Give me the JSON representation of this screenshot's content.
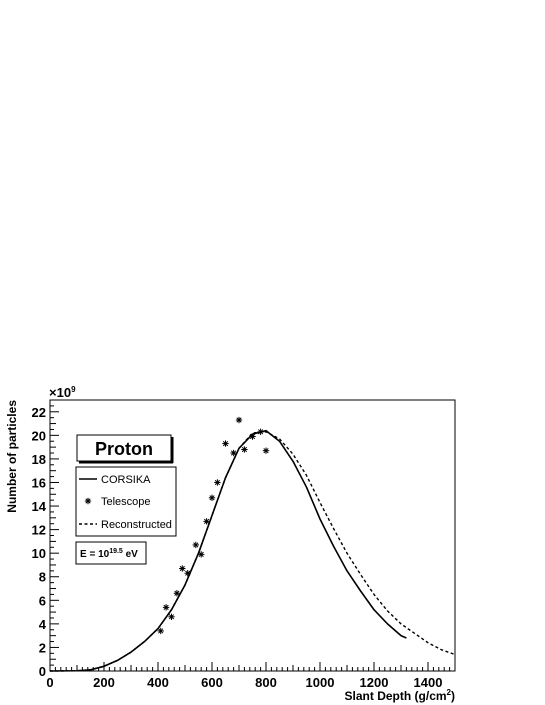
{
  "chart_data": {
    "type": "line",
    "xlabel": "Slant Depth (g/cm",
    "xlabel_sup": "2",
    "xlabel_end": ")",
    "ylabel": "Number of particles",
    "y_multiplier": "×10",
    "y_multiplier_exp": "9",
    "xlim": [
      0,
      1500
    ],
    "ylim": [
      0,
      23
    ],
    "x_ticks": [
      0,
      200,
      400,
      600,
      800,
      1000,
      1200,
      1400
    ],
    "y_ticks": [
      0,
      2,
      4,
      6,
      8,
      10,
      12,
      14,
      16,
      18,
      20,
      22
    ],
    "grid": false,
    "legend_placement": "left",
    "annotation_title": "Proton",
    "energy_label": {
      "prefix": "E = 10",
      "exp": "19.5",
      "suffix": " eV"
    },
    "series": [
      {
        "name": "CORSIKA",
        "style": "solid",
        "x": [
          0,
          100,
          150,
          200,
          250,
          300,
          350,
          400,
          450,
          500,
          550,
          600,
          650,
          700,
          750,
          800,
          850,
          900,
          950,
          1000,
          1050,
          1100,
          1150,
          1200,
          1250,
          1300,
          1320
        ],
        "y": [
          0.0,
          0.02,
          0.1,
          0.4,
          0.9,
          1.6,
          2.5,
          3.6,
          5.2,
          7.3,
          10.0,
          13.2,
          16.4,
          18.9,
          20.1,
          20.4,
          19.5,
          17.8,
          15.6,
          12.9,
          10.6,
          8.5,
          6.8,
          5.2,
          4.0,
          3.0,
          2.8
        ]
      },
      {
        "name": "Telescope",
        "style": "markers",
        "x": [
          410,
          430,
          450,
          470,
          490,
          510,
          540,
          560,
          580,
          600,
          620,
          650,
          680,
          700,
          720,
          750,
          780,
          800
        ],
        "y": [
          3.4,
          5.4,
          4.6,
          6.6,
          8.7,
          8.3,
          10.7,
          9.9,
          12.7,
          14.7,
          16.0,
          19.3,
          18.5,
          21.3,
          18.8,
          19.9,
          20.3,
          18.7
        ]
      },
      {
        "name": "Reconstructed",
        "style": "dashed",
        "x": [
          0,
          100,
          150,
          200,
          250,
          300,
          350,
          400,
          450,
          500,
          550,
          600,
          650,
          700,
          750,
          800,
          850,
          900,
          950,
          1000,
          1050,
          1100,
          1150,
          1200,
          1250,
          1300,
          1350,
          1400,
          1450,
          1500
        ],
        "y": [
          0.0,
          0.02,
          0.1,
          0.4,
          0.9,
          1.6,
          2.5,
          3.6,
          5.2,
          7.3,
          10.0,
          13.2,
          16.4,
          18.9,
          20.2,
          20.3,
          19.7,
          18.4,
          16.6,
          14.3,
          12.1,
          10.0,
          8.2,
          6.5,
          5.1,
          4.0,
          3.2,
          2.4,
          1.8,
          1.4
        ]
      }
    ]
  }
}
